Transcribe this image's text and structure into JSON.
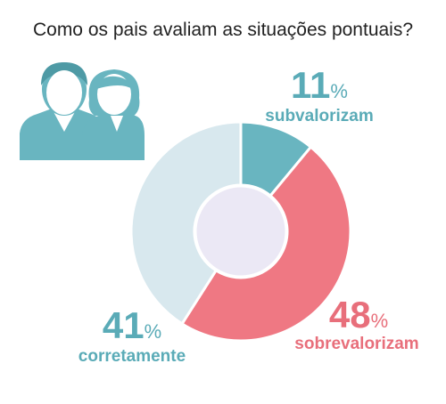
{
  "chart_data": {
    "type": "pie",
    "title": "Como os pais avaliam as situações pontuais?",
    "categories": [
      "subvalorizam",
      "sobrevalorizam",
      "corretamente"
    ],
    "values": [
      11,
      48,
      41
    ],
    "value_labels": [
      "11%",
      "48%",
      "41%"
    ],
    "colors": [
      "#69b5c0",
      "#ef7883",
      "#d8e8ee"
    ],
    "label_colors": [
      "#5aabb7",
      "#e86f7b",
      "#5aabb7"
    ]
  }
}
